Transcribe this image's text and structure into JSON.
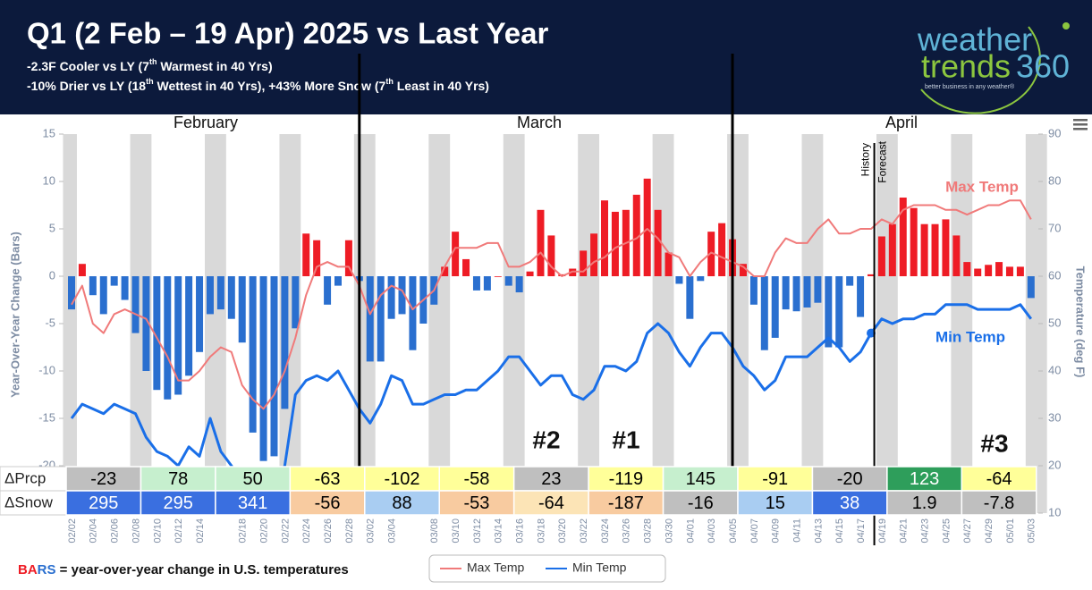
{
  "chart_data": {
    "type": "bar",
    "title": "Q1 (2 Feb – 19 Apr) 2025 vs Last Year",
    "subtitles": [
      "-2.3F Cooler vs LY (7th Warmest in 40 Yrs)",
      "-10% Drier vs LY (18th Wettest in 40 Yrs), +43% More Snow (7th Least in 40 Yrs)"
    ],
    "logo": {
      "word1": "weather",
      "word2": "trends",
      "word3": "360",
      "tagline": "better business in any weather®"
    },
    "months": [
      "February",
      "March",
      "April"
    ],
    "y_label": "Year-Over-Year Change (Bars)",
    "y2_label": "Temperature (deg F)",
    "history_label": "History",
    "forecast_label": "Forecast",
    "annotations": [
      "#2",
      "#1",
      "#3"
    ],
    "footnote": {
      "part1": "BA",
      "part2": "RS",
      "part3": " = year-over-year change in U.S. temperatures"
    },
    "categories": [
      "02/02",
      null,
      "02/04",
      null,
      "02/06",
      null,
      "02/08",
      null,
      "02/10",
      null,
      "02/12",
      null,
      "02/14",
      null,
      null,
      null,
      "02/18",
      null,
      "02/20",
      null,
      "02/22",
      null,
      "02/24",
      null,
      "02/26",
      null,
      "02/28",
      null,
      "03/02",
      null,
      "03/04",
      null,
      null,
      null,
      "03/08",
      null,
      "03/10",
      null,
      "03/12",
      null,
      "03/14",
      null,
      "03/16",
      null,
      "03/18",
      null,
      "03/20",
      null,
      "03/22",
      null,
      "03/24",
      null,
      "03/26",
      null,
      "03/28",
      null,
      "03/30",
      null,
      "04/01",
      null,
      "04/03",
      null,
      "04/05",
      null,
      "04/07",
      null,
      "04/09",
      null,
      "04/11",
      null,
      "04/13",
      null,
      "04/15",
      null,
      "04/17",
      null,
      "04/19",
      null,
      "04/21",
      null,
      "04/23",
      null,
      "04/25",
      null,
      "04/27",
      null,
      "04/29",
      null,
      "05/01",
      null,
      "05/03"
    ],
    "bars": {
      "pos_color": "#ee1c25",
      "neg_color": "#2a6fcf",
      "values": [
        -3.5,
        1.3,
        -2,
        -4,
        -1,
        -2.5,
        -6,
        -10,
        -12,
        -13,
        -12.5,
        -10.5,
        -8,
        -4,
        -3.5,
        -4.5,
        -7,
        -16.5,
        -19.5,
        -19,
        -14,
        -5.5,
        4.5,
        3.8,
        -3,
        -1,
        3.8,
        -0.5,
        -9,
        -9,
        -4.5,
        -4,
        -7.8,
        -5,
        -3,
        1,
        4.7,
        1.8,
        -1.5,
        -1.5,
        0,
        -1,
        -1.7,
        0.5,
        7,
        4.3,
        0.2,
        0.8,
        2.7,
        4.5,
        8,
        6.8,
        7,
        8.6,
        10.3,
        7,
        2.5,
        -0.8,
        -4.5,
        -0.5,
        4.7,
        5.6,
        3.9,
        1.3,
        -3,
        -7.8,
        -6.5,
        -3.5,
        -3.7,
        -3.3,
        -2.8,
        -7.5,
        -7.5,
        -1,
        -4.3,
        0.2,
        4.2,
        5.5,
        8.3,
        7.2,
        5.5,
        5.5,
        6,
        4.3,
        1.5,
        0.8,
        1.2,
        1.5,
        1,
        1,
        -2.3
      ]
    },
    "series": [
      {
        "name": "Max Temp",
        "color": "#f07a7a",
        "axis": "y2",
        "values": [
          54,
          58,
          50,
          48,
          52,
          53,
          52,
          51,
          47,
          43,
          38,
          38,
          40,
          43,
          45,
          44,
          37,
          34,
          32,
          35,
          40,
          47,
          56,
          62,
          63,
          62,
          62,
          58,
          52,
          56,
          58,
          57,
          53,
          55,
          57,
          62,
          66,
          66,
          66,
          67,
          67,
          62,
          62,
          63,
          65,
          62,
          60,
          61,
          61,
          63,
          64,
          66,
          67,
          68,
          70,
          68,
          65,
          64,
          60,
          63,
          65,
          64,
          63,
          62,
          60,
          60,
          65,
          68,
          67,
          67,
          70,
          72,
          69,
          69,
          70,
          70,
          72,
          71,
          74,
          75,
          75,
          75,
          74,
          74,
          73,
          74,
          75,
          75,
          76,
          76,
          72
        ]
      },
      {
        "name": "Min Temp",
        "color": "#1a6fe8",
        "axis": "y2",
        "values": [
          30,
          33,
          32,
          31,
          33,
          32,
          31,
          26,
          23,
          22,
          20,
          24,
          22,
          30,
          23,
          20,
          16,
          14,
          13,
          15,
          20,
          35,
          38,
          39,
          38,
          40,
          36,
          32,
          29,
          33,
          39,
          38,
          33,
          33,
          34,
          35,
          35,
          36,
          36,
          38,
          40,
          43,
          43,
          40,
          37,
          39,
          39,
          35,
          34,
          36,
          41,
          41,
          40,
          42,
          48,
          50,
          48,
          44,
          41,
          45,
          48,
          48,
          45,
          41,
          39,
          36,
          38,
          43,
          43,
          43,
          45,
          47,
          45,
          42,
          44,
          48,
          51,
          50,
          51,
          51,
          52,
          52,
          54,
          54,
          54,
          53,
          53,
          53,
          53,
          54,
          51
        ]
      }
    ],
    "ylim": [
      -25,
      15
    ],
    "yticks": [
      -20,
      -15,
      -10,
      -5,
      0,
      5,
      10,
      15
    ],
    "y2lim": [
      10,
      90
    ],
    "y2ticks": [
      10,
      20,
      30,
      40,
      50,
      60,
      70,
      80,
      90
    ],
    "grid": false,
    "table": {
      "rows": [
        {
          "label": "ΔPrcp",
          "cells": [
            {
              "value": -23,
              "color": "#bfbfbf",
              "text_color": "#000"
            },
            {
              "value": 78,
              "color": "#c6efce",
              "text_color": "#000"
            },
            {
              "value": 50,
              "color": "#c6efce",
              "text_color": "#000"
            },
            {
              "value": -63,
              "color": "#ffff99",
              "text_color": "#000"
            },
            {
              "value": -102,
              "color": "#ffff99",
              "text_color": "#000"
            },
            {
              "value": -58,
              "color": "#ffff99",
              "text_color": "#000"
            },
            {
              "value": 23,
              "color": "#bfbfbf",
              "text_color": "#000"
            },
            {
              "value": -119,
              "color": "#ffff99",
              "text_color": "#000"
            },
            {
              "value": 145,
              "color": "#c6efce",
              "text_color": "#000"
            },
            {
              "value": -91,
              "color": "#ffff99",
              "text_color": "#000"
            },
            {
              "value": -20,
              "color": "#bfbfbf",
              "text_color": "#000"
            },
            {
              "value": 123,
              "color": "#2e9e5b",
              "text_color": "#fff"
            },
            {
              "value": -64,
              "color": "#ffff99",
              "text_color": "#000"
            }
          ]
        },
        {
          "label": "ΔSnow",
          "cells": [
            {
              "value": 295,
              "color": "#3a6fe0",
              "text_color": "#fff"
            },
            {
              "value": 295,
              "color": "#3a6fe0",
              "text_color": "#fff"
            },
            {
              "value": 341,
              "color": "#3a6fe0",
              "text_color": "#fff"
            },
            {
              "value": -56,
              "color": "#f8cba0",
              "text_color": "#000"
            },
            {
              "value": 88,
              "color": "#a9cdf2",
              "text_color": "#000"
            },
            {
              "value": -53,
              "color": "#f8cba0",
              "text_color": "#000"
            },
            {
              "value": -64,
              "color": "#fce4b6",
              "text_color": "#000"
            },
            {
              "value": -187,
              "color": "#f8cba0",
              "text_color": "#000"
            },
            {
              "value": -16,
              "color": "#bfbfbf",
              "text_color": "#000"
            },
            {
              "value": 15,
              "color": "#a9cdf2",
              "text_color": "#000"
            },
            {
              "value": 38,
              "color": "#3a6fe0",
              "text_color": "#fff"
            },
            {
              "value": 1.9,
              "color": "#bfbfbf",
              "text_color": "#000"
            },
            {
              "value": -7.8,
              "color": "#bfbfbf",
              "text_color": "#000"
            }
          ]
        }
      ]
    }
  }
}
